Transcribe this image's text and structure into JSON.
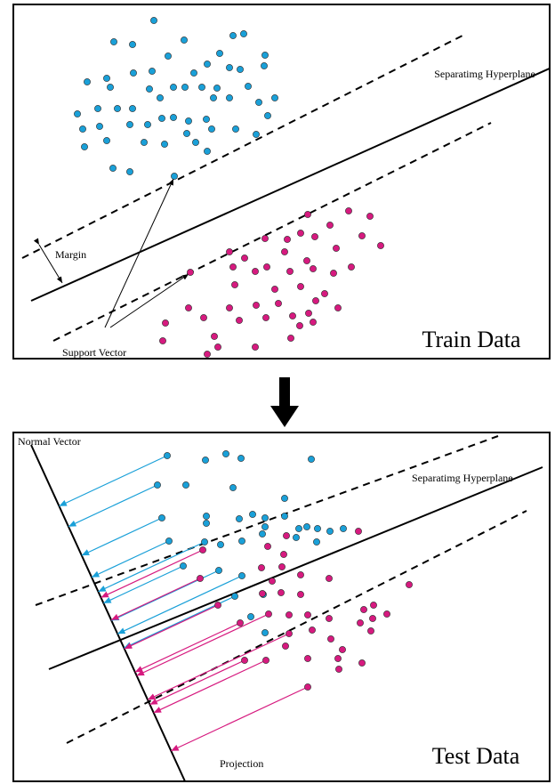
{
  "top_panel": {
    "hyperplane_label": "Separatimg Hyperplane",
    "margin_label": "Margin",
    "support_vector_label": "Support Vector",
    "panel_label": "Train Data"
  },
  "bottom_panel": {
    "normal_vector_label": "Normal Vector",
    "hyperplane_label": "Separatimg Hyperplane",
    "projection_label": "Projection",
    "panel_label": "Test Data"
  }
}
